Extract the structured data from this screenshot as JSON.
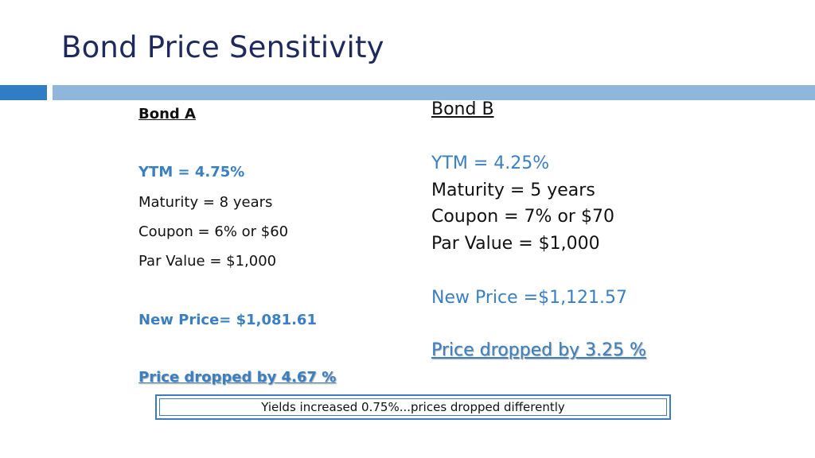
{
  "slide": {
    "title": "Bond Price Sensitivity"
  },
  "bond_a": {
    "heading": "Bond A",
    "ytm": "YTM = 4.75%",
    "maturity": "Maturity = 8 years",
    "coupon": "Coupon = 6% or $60",
    "par_value": "Par Value = $1,000",
    "new_price": "New Price= $1,081.61",
    "price_change": "Price dropped by 4.67 %"
  },
  "bond_b": {
    "heading": "Bond B",
    "ytm": "YTM = 4.25%",
    "maturity": "Maturity = 5 years",
    "coupon": "Coupon = 7% or $70",
    "par_value": "Par Value = $1,000",
    "new_price": "New Price =$1,121.57",
    "price_change": "Price dropped by 3.25 %"
  },
  "callout": {
    "text": "Yields increased 0.75%...prices dropped differently"
  },
  "colors": {
    "title": "#1f2a5c",
    "accent_blue": "#3a7fc2",
    "rule_dark": "#2f7dc4",
    "rule_light": "#8fb7dc"
  }
}
